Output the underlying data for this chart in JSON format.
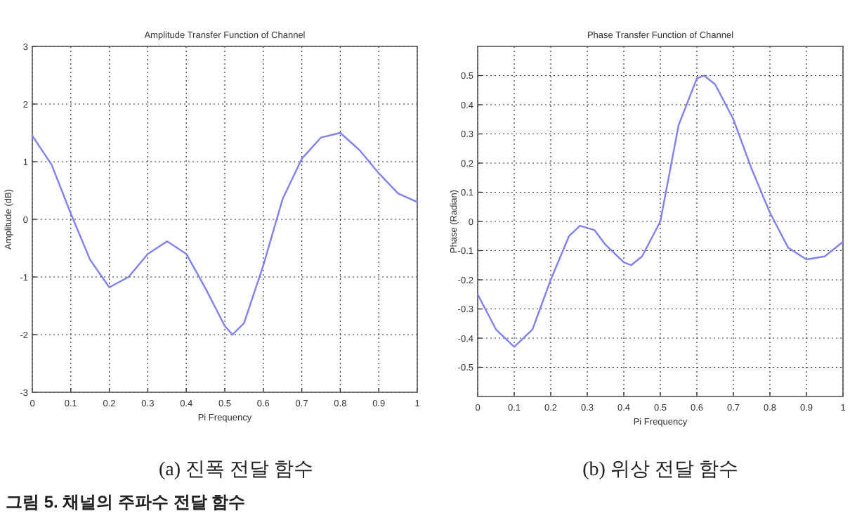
{
  "chart_data": [
    {
      "type": "line",
      "title": "Amplitude Transfer Function of Channel",
      "xlabel": "Pi Frequency",
      "ylabel": "Amplitude (dB)",
      "xlim": [
        0,
        1
      ],
      "ylim": [
        -3,
        3
      ],
      "xticks": [
        0,
        0.1,
        0.2,
        0.3,
        0.4,
        0.5,
        0.6,
        0.7,
        0.8,
        0.9,
        1
      ],
      "yticks": [
        -3,
        -2,
        -1,
        0,
        1,
        2,
        3
      ],
      "grid": true,
      "line_style": "solid",
      "series": [
        {
          "color": "#8080f0",
          "x": [
            0,
            0.05,
            0.1,
            0.15,
            0.2,
            0.25,
            0.3,
            0.35,
            0.4,
            0.45,
            0.5,
            0.52,
            0.55,
            0.6,
            0.65,
            0.7,
            0.75,
            0.8,
            0.85,
            0.9,
            0.95,
            1
          ],
          "values": [
            1.45,
            0.95,
            0.1,
            -0.7,
            -1.18,
            -1.0,
            -0.6,
            -0.38,
            -0.6,
            -1.2,
            -1.85,
            -2.0,
            -1.8,
            -0.8,
            0.35,
            1.05,
            1.42,
            1.5,
            1.2,
            0.8,
            0.45,
            0.3
          ]
        }
      ],
      "annotations": [
        "(a) 진폭 전달 함수",
        "그림 5. 채널의 주파수 전달 함수"
      ]
    },
    {
      "type": "line",
      "title": "Phase Transfer Function of Channel",
      "xlabel": "Pi Frequency",
      "ylabel": "Phase (Radian)",
      "xlim": [
        0,
        1
      ],
      "ylim": [
        -0.6,
        0.6
      ],
      "xticks": [
        0,
        0.1,
        0.2,
        0.3,
        0.4,
        0.5,
        0.6,
        0.7,
        0.8,
        0.9,
        1
      ],
      "yticks": [
        -0.5,
        -0.4,
        -0.3,
        -0.2,
        -0.1,
        0,
        0.1,
        0.2,
        0.3,
        0.4,
        0.5
      ],
      "grid": true,
      "line_style": "solid",
      "series": [
        {
          "color": "#8080f0",
          "x": [
            0,
            0.05,
            0.1,
            0.15,
            0.2,
            0.25,
            0.28,
            0.32,
            0.35,
            0.4,
            0.42,
            0.45,
            0.5,
            0.55,
            0.6,
            0.62,
            0.65,
            0.7,
            0.75,
            0.8,
            0.85,
            0.9,
            0.95,
            1
          ],
          "values": [
            -0.25,
            -0.37,
            -0.43,
            -0.37,
            -0.2,
            -0.05,
            -0.015,
            -0.03,
            -0.08,
            -0.14,
            -0.15,
            -0.12,
            0.0,
            0.33,
            0.49,
            0.5,
            0.47,
            0.35,
            0.18,
            0.03,
            -0.09,
            -0.13,
            -0.12,
            -0.07
          ]
        }
      ],
      "annotations": [
        "(b) 위상 전달 함수"
      ]
    }
  ]
}
